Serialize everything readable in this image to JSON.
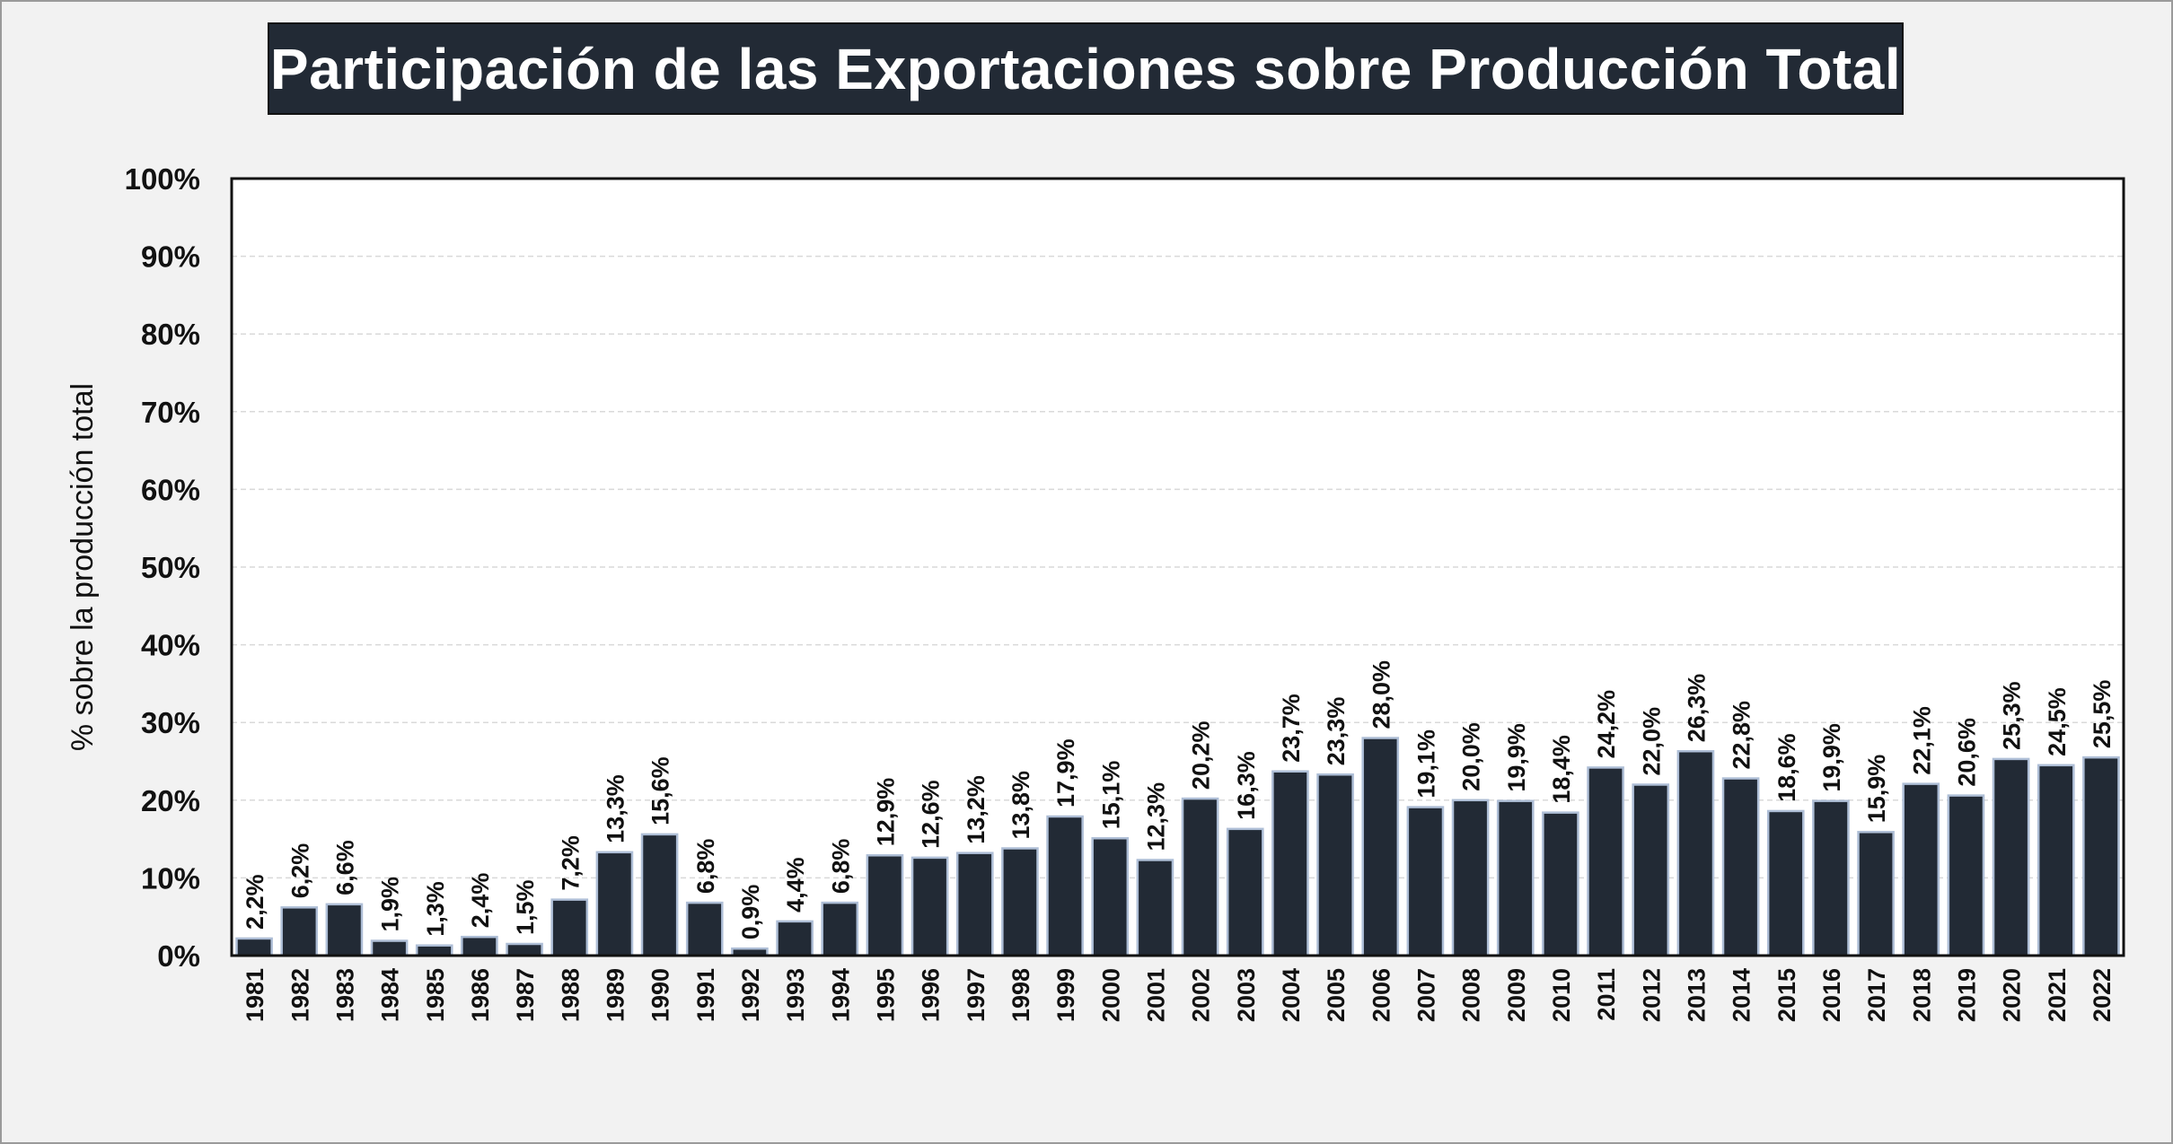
{
  "chart_data": {
    "type": "bar",
    "title": "Participación de las Exportaciones sobre Producción Total",
    "ylabel": "% sobre la producción total",
    "xlabel": "",
    "ylim": [
      0,
      100
    ],
    "yticks": [
      "0%",
      "10%",
      "20%",
      "30%",
      "40%",
      "50%",
      "60%",
      "70%",
      "80%",
      "90%",
      "100%"
    ],
    "grid": true,
    "bar_color": "#222a35",
    "bar_edge_color": "#aebed6",
    "categories": [
      "1981",
      "1982",
      "1983",
      "1984",
      "1985",
      "1986",
      "1987",
      "1988",
      "1989",
      "1990",
      "1991",
      "1992",
      "1993",
      "1994",
      "1995",
      "1996",
      "1997",
      "1998",
      "1999",
      "2000",
      "2001",
      "2002",
      "2003",
      "2004",
      "2005",
      "2006",
      "2007",
      "2008",
      "2009",
      "2010",
      "2011",
      "2012",
      "2013",
      "2014",
      "2015",
      "2016",
      "2017",
      "2018",
      "2019",
      "2020",
      "2021",
      "2022"
    ],
    "values": [
      2.2,
      6.2,
      6.6,
      1.9,
      1.3,
      2.4,
      1.5,
      7.2,
      13.3,
      15.6,
      6.8,
      0.9,
      4.4,
      6.8,
      12.9,
      12.6,
      13.2,
      13.8,
      17.9,
      15.1,
      12.3,
      20.2,
      16.3,
      23.7,
      23.3,
      28.0,
      19.1,
      20.0,
      19.9,
      18.4,
      24.2,
      22.0,
      26.3,
      22.8,
      18.6,
      19.9,
      15.9,
      22.1,
      20.6,
      25.3,
      24.5,
      25.5
    ],
    "data_labels": [
      "2,2%",
      "6,2%",
      "6,6%",
      "1,9%",
      "1,3%",
      "2,4%",
      "1,5%",
      "7,2%",
      "13,3%",
      "15,6%",
      "6,8%",
      "0,9%",
      "4,4%",
      "6,8%",
      "12,9%",
      "12,6%",
      "13,2%",
      "13,8%",
      "17,9%",
      "15,1%",
      "12,3%",
      "20,2%",
      "16,3%",
      "23,7%",
      "23,3%",
      "28,0%",
      "19,1%",
      "20,0%",
      "19,9%",
      "18,4%",
      "24,2%",
      "22,0%",
      "26,3%",
      "22,8%",
      "18,6%",
      "19,9%",
      "15,9%",
      "22,1%",
      "20,6%",
      "25,3%",
      "24,5%",
      "25,5%"
    ]
  }
}
